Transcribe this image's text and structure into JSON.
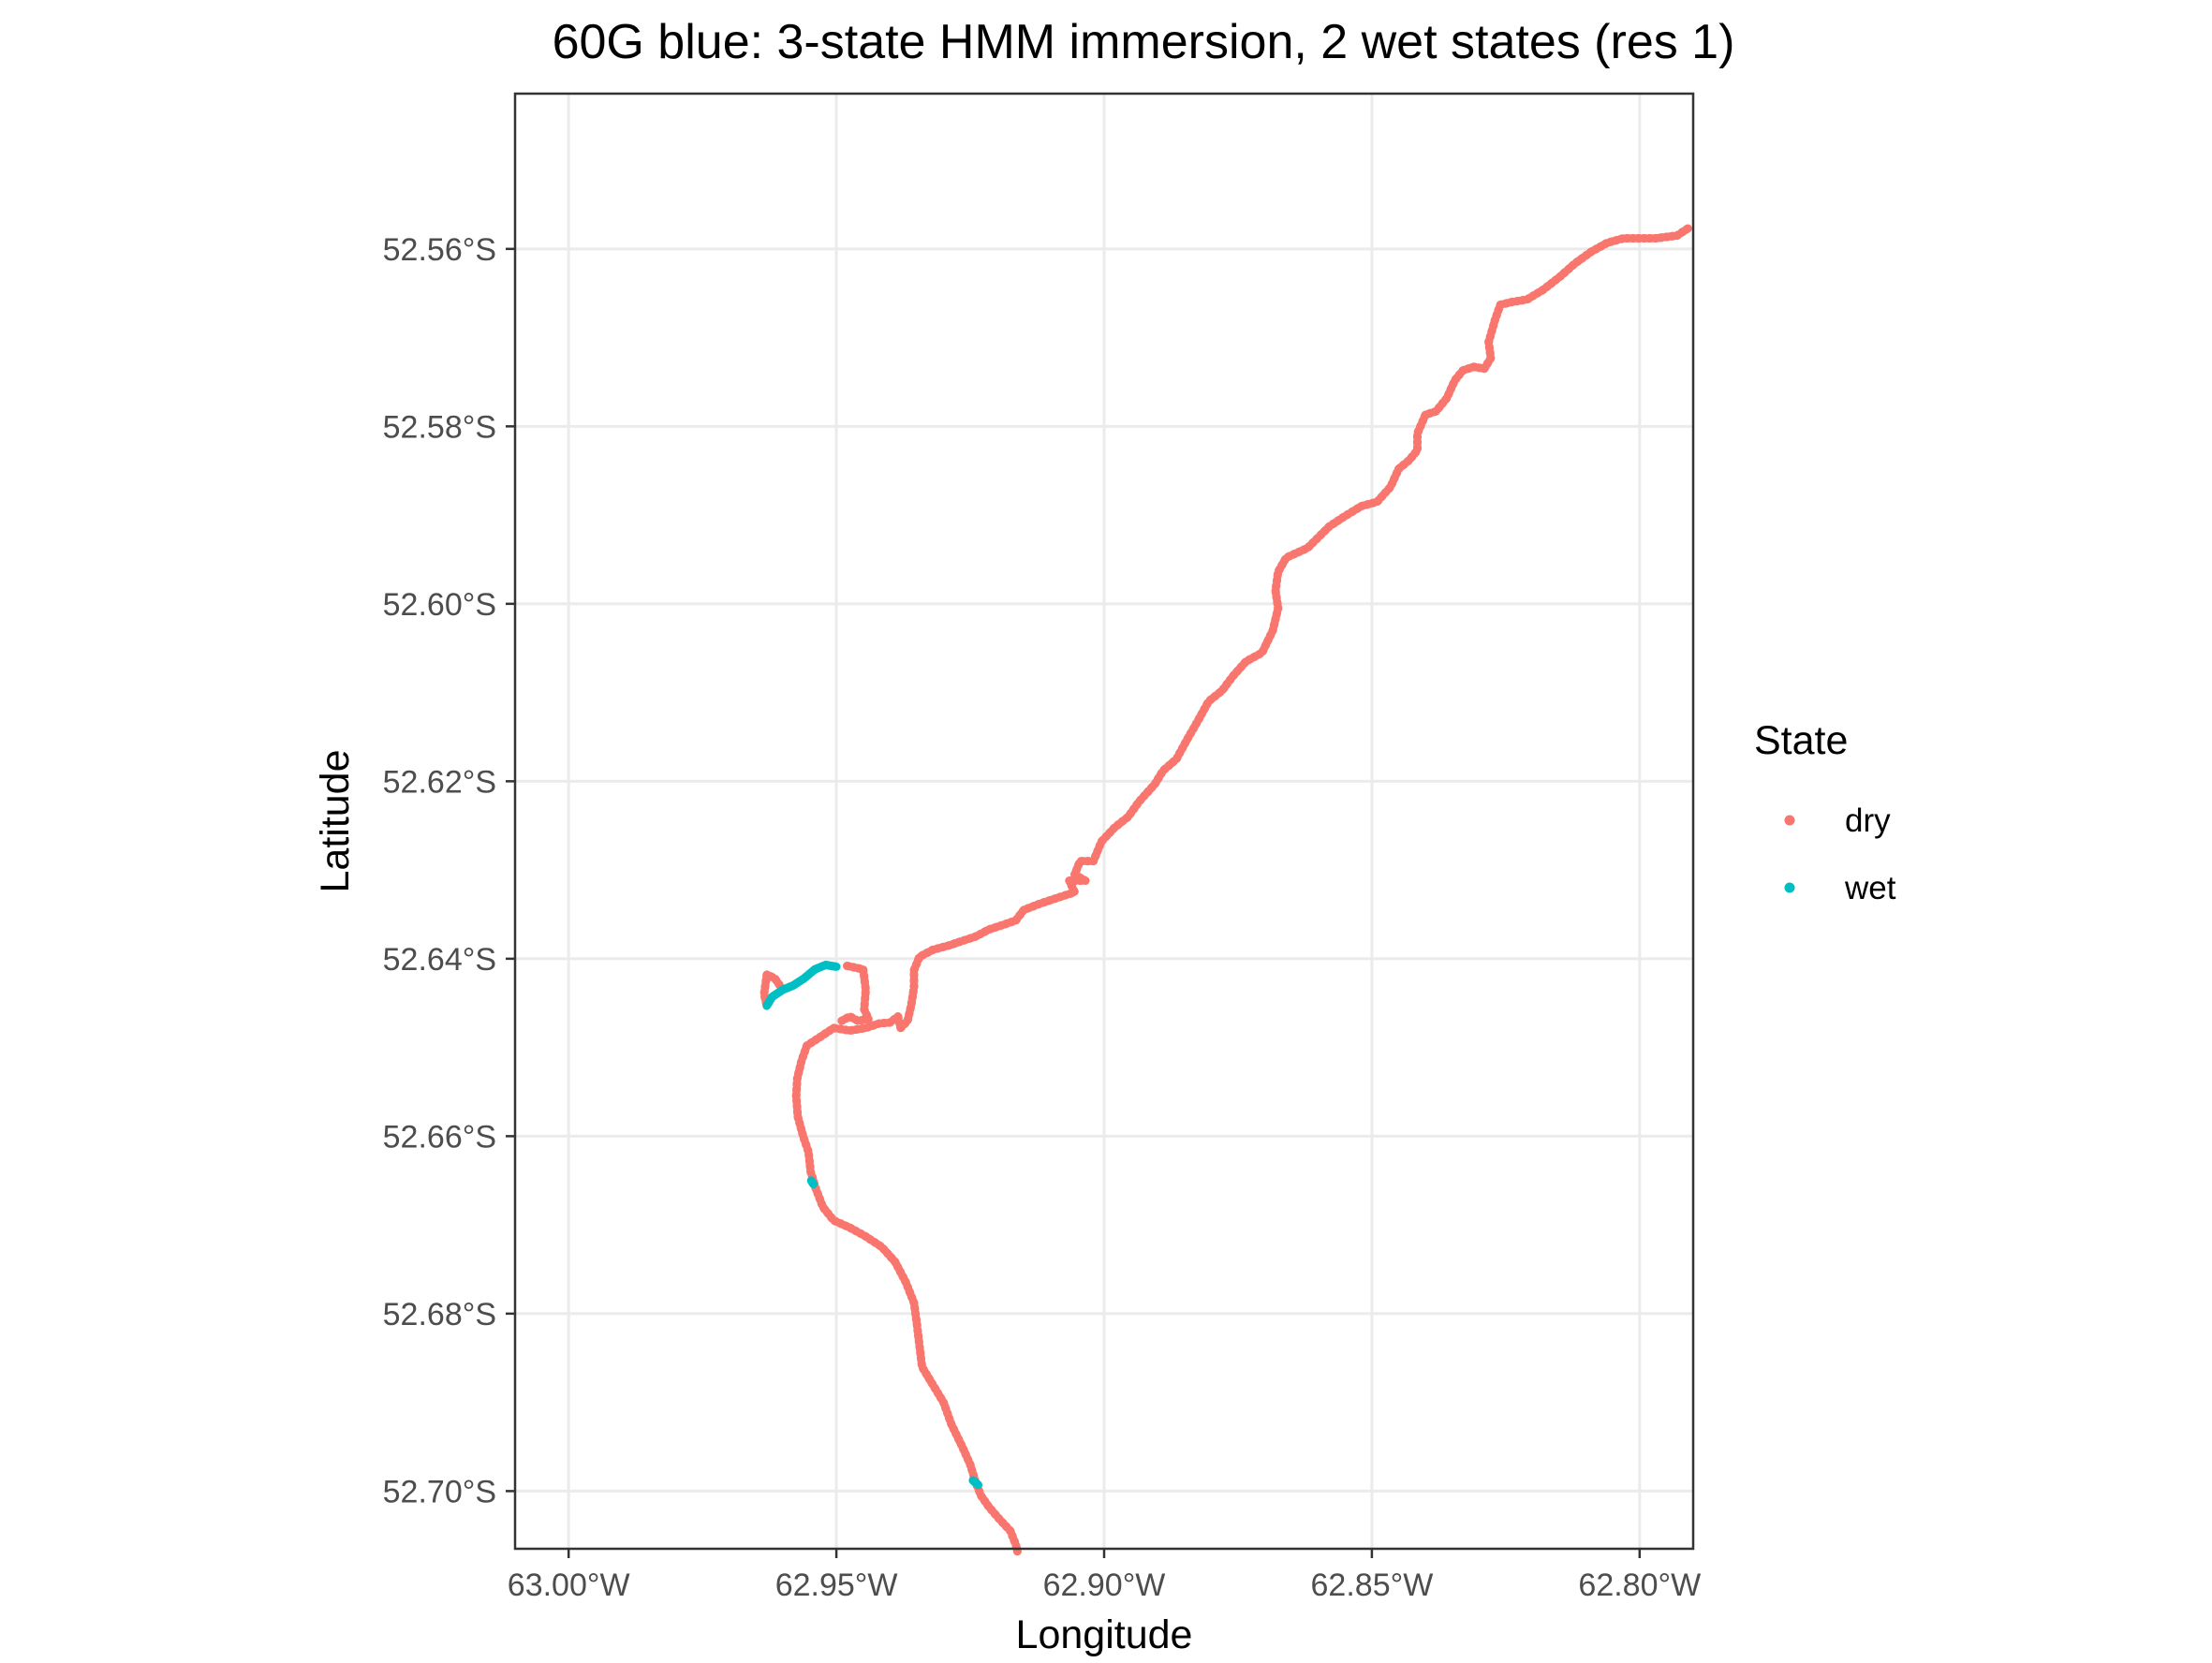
{
  "chart_data": {
    "type": "scatter",
    "title": "60G blue: 3-state HMM immersion, 2 wet states (res 1)",
    "xlabel": "Longitude",
    "ylabel": "Latitude",
    "xlim": [
      -63.01,
      -62.79
    ],
    "ylim": [
      -52.7065,
      -52.5425
    ],
    "x_ticks": [
      -63.0,
      -62.95,
      -62.9,
      -62.85,
      -62.8
    ],
    "x_tick_labels": [
      "63.00°W",
      "62.95°W",
      "62.90°W",
      "62.85°W",
      "62.80°W"
    ],
    "y_ticks": [
      -52.56,
      -52.58,
      -52.6,
      -52.62,
      -52.64,
      -52.66,
      -52.68,
      -52.7
    ],
    "y_tick_labels": [
      "52.56°S",
      "52.58°S",
      "52.60°S",
      "52.62°S",
      "52.64°S",
      "52.66°S",
      "52.68°S",
      "52.70°S"
    ],
    "grid": true,
    "legend": {
      "title": "State",
      "position": "right",
      "entries": [
        {
          "label": "dry",
          "color": "#F8766D"
        },
        {
          "label": "wet",
          "color": "#00BFC4"
        }
      ]
    },
    "series": [
      {
        "name": "dry",
        "color": "#F8766D",
        "segments": [
          [
            [
              -62.791,
              -52.5577
            ],
            [
              -62.793,
              -52.5585
            ],
            [
              -62.797,
              -52.5588
            ],
            [
              -62.803,
              -52.5588
            ],
            [
              -62.806,
              -52.5593
            ],
            [
              -62.809,
              -52.5603
            ],
            [
              -62.812,
              -52.5616
            ],
            [
              -62.815,
              -52.5632
            ],
            [
              -62.818,
              -52.5646
            ],
            [
              -62.821,
              -52.5657
            ],
            [
              -62.824,
              -52.566
            ],
            [
              -62.826,
              -52.5663
            ],
            [
              -62.827,
              -52.568
            ],
            [
              -62.8282,
              -52.5705
            ],
            [
              -62.8278,
              -52.5723
            ],
            [
              -62.829,
              -52.5735
            ],
            [
              -62.831,
              -52.5733
            ],
            [
              -62.833,
              -52.5737
            ],
            [
              -62.8345,
              -52.5748
            ],
            [
              -62.836,
              -52.5768
            ],
            [
              -62.838,
              -52.5783
            ],
            [
              -62.84,
              -52.5787
            ],
            [
              -62.8415,
              -52.5808
            ],
            [
              -62.8415,
              -52.5827
            ],
            [
              -62.843,
              -52.5838
            ],
            [
              -62.845,
              -52.5848
            ],
            [
              -62.8465,
              -52.5868
            ],
            [
              -62.849,
              -52.5885
            ],
            [
              -62.852,
              -52.589
            ],
            [
              -62.8555,
              -52.5903
            ],
            [
              -62.858,
              -52.5913
            ],
            [
              -62.862,
              -52.5937
            ],
            [
              -62.866,
              -52.5948
            ],
            [
              -62.8675,
              -52.5964
            ],
            [
              -62.868,
              -52.5985
            ],
            [
              -62.8675,
              -52.6005
            ],
            [
              -62.8685,
              -52.603
            ],
            [
              -62.8705,
              -52.6055
            ],
            [
              -62.8735,
              -52.6065
            ],
            [
              -62.876,
              -52.6082
            ],
            [
              -62.878,
              -52.6098
            ],
            [
              -62.8805,
              -52.611
            ],
            [
              -62.8825,
              -52.6132
            ],
            [
              -62.8845,
              -52.6153
            ],
            [
              -62.8865,
              -52.6175
            ],
            [
              -62.889,
              -52.6188
            ],
            [
              -62.8905,
              -52.6203
            ],
            [
              -62.8935,
              -52.6223
            ],
            [
              -62.8955,
              -52.624
            ],
            [
              -62.898,
              -52.6252
            ],
            [
              -62.9005,
              -52.6268
            ],
            [
              -62.902,
              -52.629
            ],
            [
              -62.9045,
              -52.629
            ],
            [
              -62.9055,
              -52.6305
            ],
            [
              -62.9035,
              -52.6312
            ],
            [
              -62.9065,
              -52.6312
            ],
            [
              -62.9055,
              -52.6325
            ],
            [
              -62.909,
              -52.6332
            ],
            [
              -62.912,
              -52.6338
            ],
            [
              -62.915,
              -52.6345
            ],
            [
              -62.9165,
              -52.6357
            ],
            [
              -62.919,
              -52.6362
            ],
            [
              -62.9215,
              -52.6367
            ],
            [
              -62.924,
              -52.6375
            ],
            [
              -62.9265,
              -52.638
            ],
            [
              -62.929,
              -52.6385
            ],
            [
              -62.932,
              -52.639
            ],
            [
              -62.9345,
              -52.6398
            ],
            [
              -62.9355,
              -52.6413
            ],
            [
              -62.9355,
              -52.6432
            ],
            [
              -62.936,
              -52.6452
            ],
            [
              -62.9367,
              -52.647
            ],
            [
              -62.938,
              -52.6478
            ],
            [
              -62.9385,
              -52.6465
            ],
            [
              -62.94,
              -52.6472
            ],
            [
              -62.942,
              -52.6473
            ],
            [
              -62.9445,
              -52.6478
            ],
            [
              -62.9475,
              -52.6481
            ],
            [
              -62.9505,
              -52.6478
            ],
            [
              -62.9535,
              -52.649
            ],
            [
              -62.9555,
              -52.6498
            ],
            [
              -62.9565,
              -52.6515
            ],
            [
              -62.9573,
              -52.6535
            ],
            [
              -62.9575,
              -52.6555
            ],
            [
              -62.9572,
              -52.6578
            ],
            [
              -62.9562,
              -52.66
            ],
            [
              -62.9552,
              -52.6618
            ],
            [
              -62.9548,
              -52.664
            ],
            [
              -62.9538,
              -52.666
            ],
            [
              -62.9525,
              -52.668
            ],
            [
              -62.9505,
              -52.6695
            ],
            [
              -62.9475,
              -52.6703
            ],
            [
              -62.9445,
              -52.6713
            ],
            [
              -62.9415,
              -52.6725
            ],
            [
              -62.939,
              -52.6742
            ],
            [
              -62.937,
              -52.6765
            ],
            [
              -62.9355,
              -52.6788
            ],
            [
              -62.935,
              -52.681
            ],
            [
              -62.9345,
              -52.6835
            ],
            [
              -62.934,
              -52.686
            ],
            [
              -62.932,
              -52.688
            ],
            [
              -62.93,
              -52.69
            ],
            [
              -62.9285,
              -52.6925
            ],
            [
              -62.9265,
              -52.695
            ],
            [
              -62.925,
              -52.697
            ],
            [
              -62.924,
              -52.699
            ],
            [
              -62.923,
              -52.7005
            ],
            [
              -62.9215,
              -52.7018
            ],
            [
              -62.9195,
              -52.7032
            ],
            [
              -62.9175,
              -52.7045
            ],
            [
              -62.9165,
              -52.706
            ],
            [
              -62.9162,
              -52.7068
            ]
          ],
          [
            [
              -62.948,
              -52.6408
            ],
            [
              -62.945,
              -52.6412
            ],
            [
              -62.9445,
              -52.6435
            ],
            [
              -62.9448,
              -52.6457
            ],
            [
              -62.944,
              -52.6468
            ],
            [
              -62.946,
              -52.647
            ],
            [
              -62.9475,
              -52.6465
            ],
            [
              -62.949,
              -52.647
            ]
          ],
          [
            [
              -62.96,
              -52.6435
            ],
            [
              -62.9615,
              -52.6422
            ],
            [
              -62.963,
              -52.6418
            ],
            [
              -62.9635,
              -52.644
            ],
            [
              -62.963,
              -52.6453
            ]
          ]
        ]
      },
      {
        "name": "wet",
        "color": "#00BFC4",
        "segments": [
          [
            [
              -62.963,
              -52.6453
            ],
            [
              -62.962,
              -52.6443
            ],
            [
              -62.96,
              -52.6435
            ],
            [
              -62.958,
              -52.643
            ],
            [
              -62.956,
              -52.6422
            ],
            [
              -62.954,
              -52.6412
            ],
            [
              -62.952,
              -52.6407
            ],
            [
              -62.95,
              -52.6409
            ]
          ],
          [
            [
              -62.9245,
              -52.6988
            ],
            [
              -62.9235,
              -52.6993
            ]
          ],
          [
            [
              -62.9547,
              -52.665
            ],
            [
              -62.9543,
              -52.6654
            ]
          ]
        ]
      }
    ]
  }
}
